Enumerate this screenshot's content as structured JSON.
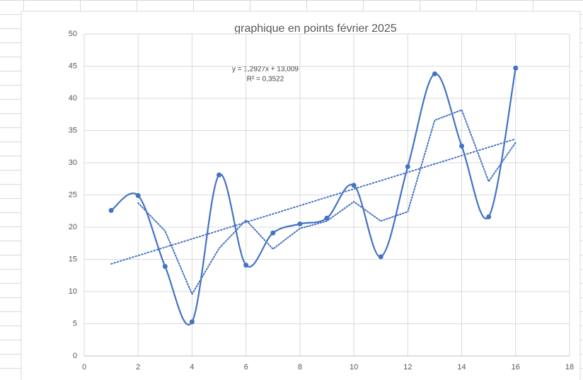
{
  "chart_data": {
    "type": "scatter",
    "title": "graphique en points février 2025",
    "annotations": [
      "y = 1,2927x + 13,009",
      "R² = 0,3522"
    ],
    "x": [
      1,
      2,
      3,
      4,
      5,
      6,
      7,
      8,
      9,
      10,
      11,
      12,
      13,
      14,
      15,
      16
    ],
    "series": [
      {
        "color": "#4472c4",
        "values": [
          22.6,
          24.9,
          13.9,
          5.3,
          28.1,
          14.1,
          19.1,
          20.5,
          21.4,
          26.5,
          15.4,
          29.4,
          43.8,
          32.6,
          21.6,
          44.7
        ]
      }
    ],
    "xlim": [
      0,
      18
    ],
    "xticks": [
      0,
      2,
      4,
      6,
      8,
      10,
      12,
      14,
      16,
      18
    ],
    "ylim": [
      0,
      50
    ],
    "yticks": [
      0,
      5,
      10,
      15,
      20,
      25,
      30,
      35,
      40,
      45,
      50
    ],
    "grid": true,
    "smooth": true
  }
}
